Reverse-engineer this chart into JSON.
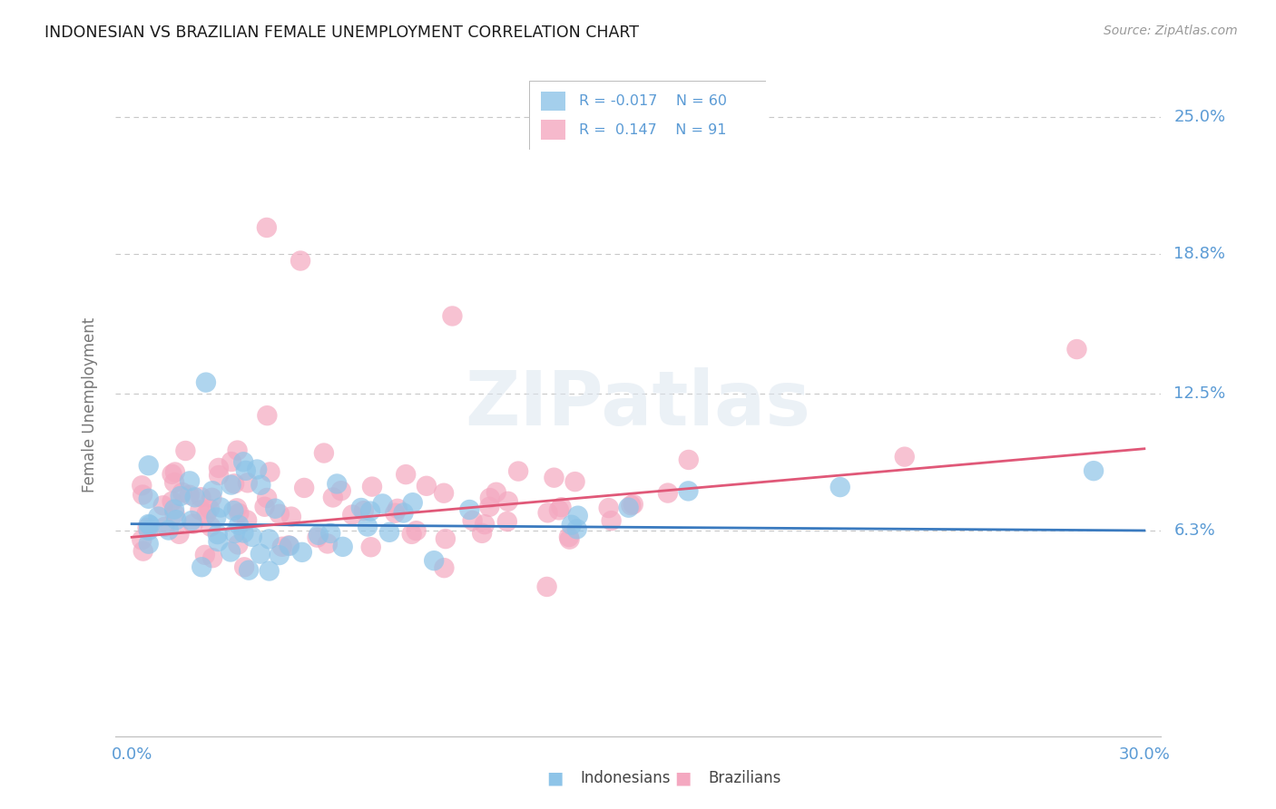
{
  "title": "INDONESIAN VS BRAZILIAN FEMALE UNEMPLOYMENT CORRELATION CHART",
  "source": "Source: ZipAtlas.com",
  "ylabel": "Female Unemployment",
  "watermark": "ZIPatlas",
  "indonesian_color": "#8ec4e8",
  "brazilian_color": "#f4a8c0",
  "indonesian_line_color": "#3a7abf",
  "brazilian_line_color": "#e05878",
  "axis_color": "#5b9bd5",
  "grid_color": "#c8c8c8",
  "background_color": "#ffffff",
  "ytick_vals": [
    0.063,
    0.125,
    0.188,
    0.25
  ],
  "ytick_labels": [
    "6.3%",
    "12.5%",
    "18.8%",
    "25.0%"
  ],
  "ylim_low": -0.03,
  "ylim_high": 0.27,
  "xlim_low": -0.005,
  "xlim_high": 0.305,
  "indonesian_R": -0.017,
  "indonesian_N": 60,
  "brazilian_R": 0.147,
  "brazilian_N": 91,
  "indo_line_x": [
    0.0,
    0.3
  ],
  "indo_line_y": [
    0.066,
    0.063
  ],
  "braz_line_x": [
    0.0,
    0.3
  ],
  "braz_line_y": [
    0.06,
    0.1
  ]
}
